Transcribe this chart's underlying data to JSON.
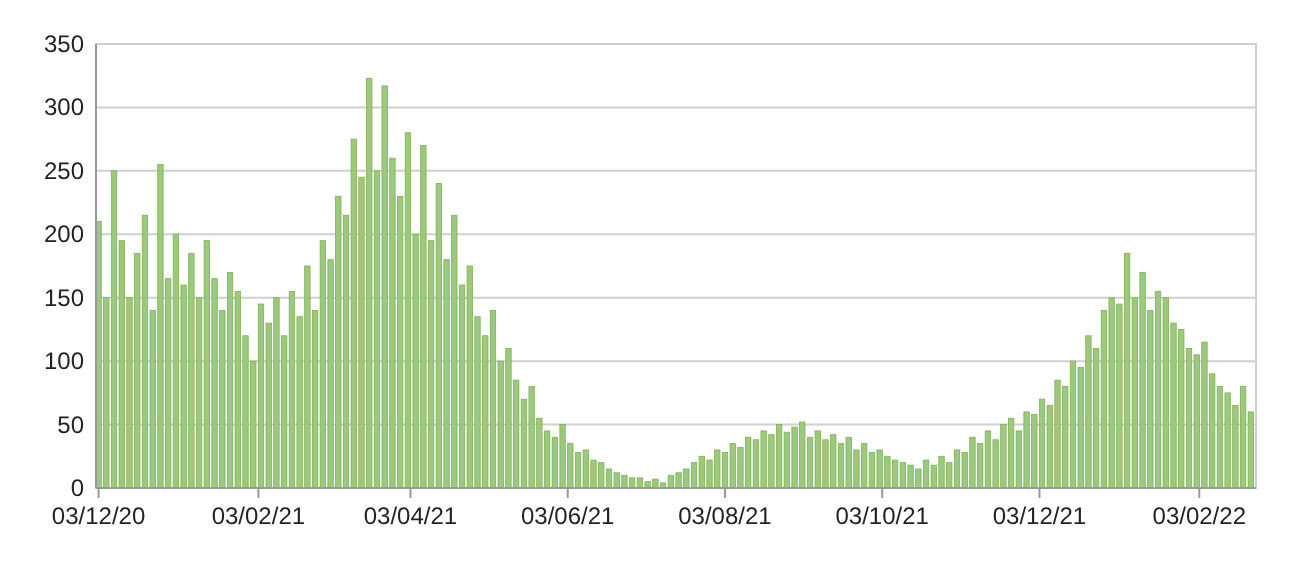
{
  "chart_data": {
    "type": "bar",
    "color": "#9cc97b",
    "grid": "y",
    "x": [
      "2020-12-03",
      "2020-12-06",
      "2020-12-09",
      "2020-12-12",
      "2020-12-15",
      "2020-12-18",
      "2020-12-21",
      "2020-12-24",
      "2020-12-27",
      "2020-12-30",
      "2021-01-02",
      "2021-01-05",
      "2021-01-08",
      "2021-01-11",
      "2021-01-14",
      "2021-01-17",
      "2021-01-20",
      "2021-01-23",
      "2021-01-26",
      "2021-01-29",
      "2021-02-01",
      "2021-02-04",
      "2021-02-07",
      "2021-02-10",
      "2021-02-13",
      "2021-02-16",
      "2021-02-19",
      "2021-02-22",
      "2021-02-25",
      "2021-02-28",
      "2021-03-03",
      "2021-03-06",
      "2021-03-09",
      "2021-03-12",
      "2021-03-15",
      "2021-03-18",
      "2021-03-21",
      "2021-03-24",
      "2021-03-27",
      "2021-03-30",
      "2021-04-02",
      "2021-04-05",
      "2021-04-08",
      "2021-04-11",
      "2021-04-14",
      "2021-04-17",
      "2021-04-20",
      "2021-04-23",
      "2021-04-26",
      "2021-04-29",
      "2021-05-02",
      "2021-05-05",
      "2021-05-08",
      "2021-05-11",
      "2021-05-14",
      "2021-05-17",
      "2021-05-20",
      "2021-05-23",
      "2021-05-26",
      "2021-05-29",
      "2021-06-01",
      "2021-06-04",
      "2021-06-07",
      "2021-06-10",
      "2021-06-13",
      "2021-06-16",
      "2021-06-19",
      "2021-06-22",
      "2021-06-25",
      "2021-06-28",
      "2021-07-01",
      "2021-07-04",
      "2021-07-07",
      "2021-07-10",
      "2021-07-13",
      "2021-07-16",
      "2021-07-19",
      "2021-07-22",
      "2021-07-25",
      "2021-07-28",
      "2021-07-31",
      "2021-08-03",
      "2021-08-06",
      "2021-08-09",
      "2021-08-12",
      "2021-08-15",
      "2021-08-18",
      "2021-08-21",
      "2021-08-24",
      "2021-08-27",
      "2021-08-30",
      "2021-09-02",
      "2021-09-05",
      "2021-09-08",
      "2021-09-11",
      "2021-09-14",
      "2021-09-17",
      "2021-09-20",
      "2021-09-23",
      "2021-09-26",
      "2021-09-29",
      "2021-10-02",
      "2021-10-05",
      "2021-10-08",
      "2021-10-11",
      "2021-10-14",
      "2021-10-17",
      "2021-10-20",
      "2021-10-23",
      "2021-10-26",
      "2021-10-29",
      "2021-11-01",
      "2021-11-04",
      "2021-11-07",
      "2021-11-10",
      "2021-11-13",
      "2021-11-16",
      "2021-11-19",
      "2021-11-22",
      "2021-11-25",
      "2021-11-28",
      "2021-12-01",
      "2021-12-04",
      "2021-12-07",
      "2021-12-10",
      "2021-12-13",
      "2021-12-16",
      "2021-12-19",
      "2021-12-22",
      "2021-12-25",
      "2021-12-28",
      "2021-12-31",
      "2022-01-03",
      "2022-01-06",
      "2022-01-09",
      "2022-01-12",
      "2022-01-15",
      "2022-01-18",
      "2022-01-21",
      "2022-01-24",
      "2022-01-27",
      "2022-01-30",
      "2022-02-02",
      "2022-02-05",
      "2022-02-08",
      "2022-02-11",
      "2022-02-14",
      "2022-02-17",
      "2022-02-20",
      "2022-02-23"
    ],
    "values": [
      210,
      150,
      250,
      195,
      150,
      185,
      215,
      140,
      255,
      165,
      200,
      160,
      185,
      150,
      195,
      165,
      140,
      170,
      155,
      120,
      100,
      145,
      130,
      150,
      120,
      155,
      135,
      175,
      140,
      195,
      180,
      230,
      215,
      275,
      245,
      323,
      250,
      317,
      260,
      230,
      280,
      200,
      270,
      195,
      240,
      180,
      215,
      160,
      175,
      135,
      120,
      140,
      100,
      110,
      85,
      70,
      80,
      55,
      45,
      40,
      50,
      35,
      28,
      30,
      22,
      20,
      15,
      12,
      10,
      8,
      8,
      5,
      7,
      4,
      10,
      12,
      15,
      20,
      25,
      22,
      30,
      28,
      35,
      32,
      40,
      38,
      45,
      42,
      50,
      44,
      48,
      52,
      40,
      45,
      38,
      42,
      35,
      40,
      30,
      35,
      28,
      30,
      25,
      22,
      20,
      18,
      15,
      22,
      18,
      25,
      20,
      30,
      28,
      40,
      35,
      45,
      38,
      50,
      55,
      45,
      60,
      58,
      70,
      65,
      85,
      80,
      100,
      95,
      120,
      110,
      140,
      150,
      145,
      185,
      150,
      170,
      140,
      155,
      150,
      130,
      125,
      110,
      105,
      115,
      90,
      80,
      75,
      65,
      80,
      60
    ],
    "xlim": [
      "2020-12-02",
      "2022-02-25"
    ],
    "xticks": [
      {
        "value": "2020-12-03",
        "label": "03/12/20"
      },
      {
        "value": "2021-02-03",
        "label": "03/02/21"
      },
      {
        "value": "2021-04-03",
        "label": "03/04/21"
      },
      {
        "value": "2021-06-03",
        "label": "03/06/21"
      },
      {
        "value": "2021-08-03",
        "label": "03/08/21"
      },
      {
        "value": "2021-10-03",
        "label": "03/10/21"
      },
      {
        "value": "2021-12-03",
        "label": "03/12/21"
      },
      {
        "value": "2022-02-03",
        "label": "03/02/22"
      }
    ],
    "ylim": [
      0,
      350
    ],
    "yticks": [
      0,
      50,
      100,
      150,
      200,
      250,
      300,
      350
    ]
  }
}
